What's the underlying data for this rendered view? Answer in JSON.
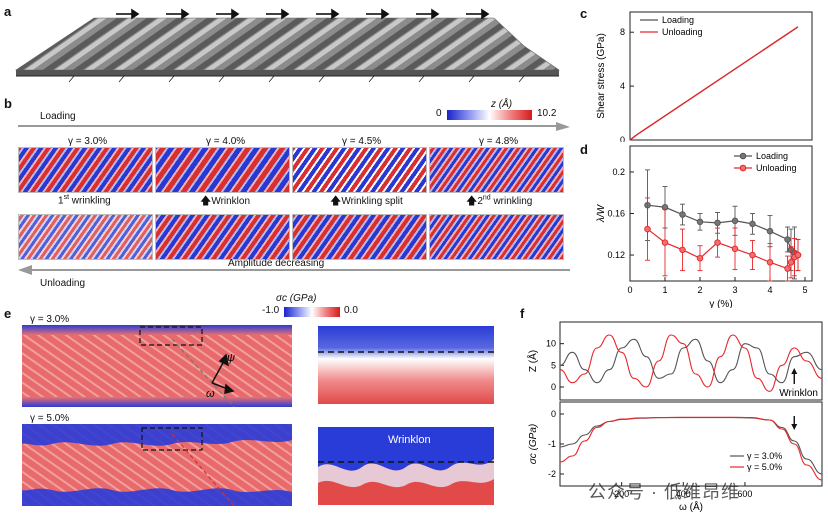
{
  "panels": {
    "a": "a",
    "b": "b",
    "c": "c",
    "d": "d",
    "e": "e",
    "f": "f"
  },
  "panel_b": {
    "colorbar_label": "z (Å)",
    "colorbar_min": "0",
    "colorbar_max": "10.2",
    "loading_label": "Loading",
    "unloading_label": "Unloading",
    "strain_labels": [
      "γ = 3.0%",
      "γ = 4.0%",
      "γ = 4.5%",
      "γ = 4.8%"
    ],
    "first_wrinkling_base": "1",
    "first_wrinkling_sup": "st",
    "first_wrinkling_text": " wrinkling",
    "wrinklon": "Wrinklon",
    "wrinkling_split": "Wrinkling split",
    "second_wrinkling_base": "2",
    "second_wrinkling_sup": "nd",
    "second_wrinkling_text": " wrinkling",
    "amplitude_decreasing": "Amplitude decreasing"
  },
  "panel_e": {
    "colorbar_label": "σc (GPa)",
    "colorbar_min": "-1.0",
    "colorbar_max": "0.0",
    "strain_top": "γ = 3.0%",
    "strain_bottom": "γ = 5.0%",
    "psi": "ψ",
    "omega": "ω",
    "wrinklon_label": "Wrinklon"
  },
  "watermark": "公众号 · 低维昂维",
  "colors": {
    "loading": "#555555",
    "unloading": "#e8262a",
    "red": "#e8383a",
    "blue": "#2a3cd8"
  },
  "chart_data": [
    {
      "id": "c",
      "type": "line",
      "title": "",
      "xlabel": "",
      "ylabel": "Shear stress (GPa)",
      "xlim": [
        0,
        5.2
      ],
      "ylim": [
        0,
        9.5
      ],
      "yticks": [
        "0",
        "4",
        "8"
      ],
      "legend": [
        "Loading",
        "Unloading"
      ],
      "series": [
        {
          "name": "Loading",
          "x": [
            0,
            0.2,
            4.8
          ],
          "y": [
            0,
            0.4,
            8.4
          ]
        },
        {
          "name": "Unloading",
          "x": [
            0,
            0.2,
            4.8
          ],
          "y": [
            0,
            0.4,
            8.4
          ]
        }
      ]
    },
    {
      "id": "d",
      "type": "line",
      "xlabel": "γ (%)",
      "ylabel": "λ/W",
      "xlim": [
        0,
        5.2
      ],
      "ylim": [
        0.095,
        0.225
      ],
      "xticks": [
        "0",
        "1",
        "2",
        "3",
        "4",
        "5"
      ],
      "yticks": [
        "0.12",
        "0.16",
        "0.2"
      ],
      "legend": [
        "Loading",
        "Unloading"
      ],
      "series": [
        {
          "name": "Loading",
          "x": [
            0.5,
            1.0,
            1.5,
            2.0,
            2.5,
            3.0,
            3.5,
            4.0,
            4.5,
            4.6,
            4.7,
            4.8
          ],
          "y": [
            0.168,
            0.166,
            0.159,
            0.152,
            0.151,
            0.153,
            0.15,
            0.143,
            0.135,
            0.125,
            0.122,
            0.12
          ],
          "err": [
            0.034,
            0.02,
            0.01,
            0.008,
            0.01,
            0.014,
            0.01,
            0.015,
            0.012,
            0.02,
            0.025,
            0.015
          ]
        },
        {
          "name": "Unloading",
          "x": [
            0.5,
            1.0,
            1.5,
            2.0,
            2.5,
            3.0,
            3.5,
            4.0,
            4.5,
            4.6,
            4.7,
            4.8
          ],
          "y": [
            0.145,
            0.132,
            0.125,
            0.117,
            0.132,
            0.126,
            0.12,
            0.113,
            0.107,
            0.113,
            0.118,
            0.12
          ],
          "err": [
            0.03,
            0.032,
            0.02,
            0.012,
            0.014,
            0.02,
            0.014,
            0.018,
            0.012,
            0.015,
            0.018,
            0.015
          ]
        }
      ]
    },
    {
      "id": "f_top",
      "type": "line",
      "ylabel": "Z (Å)",
      "xlim": [
        0,
        850
      ],
      "ylim": [
        -3,
        15
      ],
      "yticks": [
        "0",
        "5",
        "10"
      ],
      "annotation": "Wrinklon",
      "series": [
        {
          "name": "γ = 3.0%",
          "x": [
            0,
            40,
            80,
            120,
            160,
            200,
            240,
            280,
            320,
            360,
            400,
            440,
            480,
            520,
            560,
            600,
            640,
            680,
            720,
            760,
            800,
            850
          ],
          "y": [
            5,
            8,
            4,
            1,
            4,
            9,
            11,
            7,
            2,
            3,
            9,
            11,
            6,
            1,
            4,
            10,
            9,
            3,
            1,
            7,
            8,
            4
          ]
        },
        {
          "name": "γ = 5.0%",
          "x": [
            0,
            40,
            80,
            120,
            160,
            200,
            240,
            280,
            320,
            360,
            400,
            440,
            480,
            520,
            560,
            600,
            640,
            680,
            720,
            760,
            800,
            850
          ],
          "y": [
            4,
            1,
            3,
            9,
            12,
            8,
            2,
            0,
            6,
            12,
            10,
            3,
            0,
            7,
            12,
            9,
            2,
            -1,
            5,
            9,
            6,
            2
          ]
        }
      ]
    },
    {
      "id": "f_bottom",
      "type": "line",
      "xlabel": "ω (Å)",
      "ylabel": "σc (GPa)",
      "xlim": [
        0,
        850
      ],
      "ylim": [
        -2.4,
        0.4
      ],
      "xticks": [
        "200",
        "400",
        "600"
      ],
      "yticks": [
        "0",
        "-1",
        "-2"
      ],
      "legend": [
        "γ = 3.0%",
        "γ = 5.0%"
      ],
      "series": [
        {
          "name": "γ = 3.0%",
          "x": [
            0,
            40,
            80,
            120,
            160,
            200,
            260,
            320,
            400,
            480,
            560,
            620,
            680,
            720,
            760,
            800,
            850
          ],
          "y": [
            -1.1,
            -1.0,
            -0.7,
            -0.4,
            -0.25,
            -0.18,
            -0.14,
            -0.12,
            -0.12,
            -0.12,
            -0.12,
            -0.13,
            -0.2,
            -0.45,
            -0.9,
            -1.5,
            -2.0
          ]
        },
        {
          "name": "γ = 5.0%",
          "x": [
            0,
            40,
            80,
            120,
            160,
            200,
            260,
            320,
            400,
            480,
            560,
            620,
            680,
            720,
            760,
            800,
            850
          ],
          "y": [
            -1.6,
            -1.4,
            -0.9,
            -0.45,
            -0.25,
            -0.17,
            -0.13,
            -0.12,
            -0.11,
            -0.11,
            -0.11,
            -0.12,
            -0.2,
            -0.5,
            -1.0,
            -1.7,
            -2.2
          ]
        }
      ]
    }
  ]
}
